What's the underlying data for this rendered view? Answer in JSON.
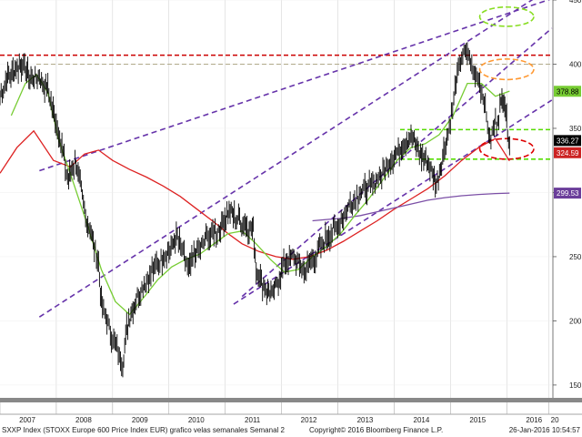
{
  "chart_data": {
    "type": "candlestick-line",
    "ylim": [
      140,
      450
    ],
    "xlim": [
      2007.0,
      2016.82
    ],
    "yticks": [
      150,
      200,
      250,
      300,
      350,
      400,
      450
    ],
    "year_labels": [
      "2007",
      "2008",
      "2009",
      "2010",
      "2011",
      "2012",
      "2013",
      "2014",
      "2015",
      "2016",
      "20"
    ],
    "year_label_positions": [
      2007.0,
      2008.0,
      2009.0,
      2010.0,
      2011.0,
      2012.0,
      2013.0,
      2014.0,
      2015.0,
      2016.0,
      2016.75
    ],
    "price_path": [
      [
        2007.0,
        375
      ],
      [
        2007.1,
        387
      ],
      [
        2007.25,
        395
      ],
      [
        2007.4,
        400
      ],
      [
        2007.55,
        388
      ],
      [
        2007.7,
        390
      ],
      [
        2007.85,
        380
      ],
      [
        2008.0,
        355
      ],
      [
        2008.1,
        335
      ],
      [
        2008.2,
        310
      ],
      [
        2008.35,
        325
      ],
      [
        2008.5,
        285
      ],
      [
        2008.6,
        270
      ],
      [
        2008.75,
        245
      ],
      [
        2008.8,
        215
      ],
      [
        2008.9,
        200
      ],
      [
        2009.0,
        185
      ],
      [
        2009.1,
        175
      ],
      [
        2009.18,
        165
      ],
      [
        2009.25,
        195
      ],
      [
        2009.4,
        215
      ],
      [
        2009.6,
        232
      ],
      [
        2009.8,
        245
      ],
      [
        2010.0,
        255
      ],
      [
        2010.15,
        265
      ],
      [
        2010.35,
        240
      ],
      [
        2010.5,
        255
      ],
      [
        2010.7,
        265
      ],
      [
        2010.9,
        272
      ],
      [
        2011.05,
        285
      ],
      [
        2011.2,
        280
      ],
      [
        2011.35,
        275
      ],
      [
        2011.5,
        270
      ],
      [
        2011.55,
        240
      ],
      [
        2011.7,
        225
      ],
      [
        2011.85,
        220
      ],
      [
        2012.0,
        240
      ],
      [
        2012.2,
        250
      ],
      [
        2012.4,
        238
      ],
      [
        2012.6,
        250
      ],
      [
        2012.8,
        265
      ],
      [
        2013.0,
        275
      ],
      [
        2013.2,
        290
      ],
      [
        2013.4,
        300
      ],
      [
        2013.6,
        305
      ],
      [
        2013.8,
        315
      ],
      [
        2014.0,
        330
      ],
      [
        2014.15,
        335
      ],
      [
        2014.3,
        345
      ],
      [
        2014.45,
        330
      ],
      [
        2014.6,
        325
      ],
      [
        2014.75,
        305
      ],
      [
        2014.9,
        335
      ],
      [
        2015.0,
        355
      ],
      [
        2015.1,
        385
      ],
      [
        2015.2,
        405
      ],
      [
        2015.3,
        410
      ],
      [
        2015.4,
        395
      ],
      [
        2015.5,
        390
      ],
      [
        2015.6,
        370
      ],
      [
        2015.7,
        340
      ],
      [
        2015.78,
        350
      ],
      [
        2015.88,
        365
      ],
      [
        2015.95,
        375
      ],
      [
        2016.0,
        355
      ],
      [
        2016.05,
        336
      ]
    ],
    "moving_average_fast": [
      [
        2007.2,
        360
      ],
      [
        2007.45,
        385
      ],
      [
        2007.65,
        392
      ],
      [
        2007.85,
        378
      ],
      [
        2008.05,
        340
      ],
      [
        2008.3,
        308
      ],
      [
        2008.55,
        275
      ],
      [
        2008.8,
        240
      ],
      [
        2009.05,
        215
      ],
      [
        2009.3,
        205
      ],
      [
        2009.55,
        218
      ],
      [
        2009.8,
        232
      ],
      [
        2010.05,
        242
      ],
      [
        2010.3,
        248
      ],
      [
        2010.55,
        252
      ],
      [
        2010.8,
        260
      ],
      [
        2011.05,
        268
      ],
      [
        2011.3,
        270
      ],
      [
        2011.55,
        260
      ],
      [
        2011.8,
        248
      ],
      [
        2012.05,
        238
      ],
      [
        2012.3,
        240
      ],
      [
        2012.55,
        250
      ],
      [
        2012.8,
        258
      ],
      [
        2013.05,
        268
      ],
      [
        2013.3,
        282
      ],
      [
        2013.55,
        295
      ],
      [
        2013.8,
        310
      ],
      [
        2014.05,
        325
      ],
      [
        2014.3,
        335
      ],
      [
        2014.55,
        338
      ],
      [
        2014.8,
        345
      ],
      [
        2015.05,
        360
      ],
      [
        2015.3,
        385
      ],
      [
        2015.55,
        385
      ],
      [
        2015.8,
        375
      ],
      [
        2016.05,
        379
      ]
    ],
    "moving_average_slow": [
      [
        2007.0,
        315
      ],
      [
        2007.3,
        335
      ],
      [
        2007.6,
        348
      ],
      [
        2007.95,
        325
      ],
      [
        2008.25,
        320
      ],
      [
        2008.5,
        330
      ],
      [
        2008.75,
        333
      ],
      [
        2009.0,
        325
      ],
      [
        2009.3,
        318
      ],
      [
        2009.6,
        312
      ],
      [
        2009.9,
        305
      ],
      [
        2010.2,
        297
      ],
      [
        2010.5,
        287
      ],
      [
        2010.8,
        277
      ],
      [
        2011.05,
        268
      ],
      [
        2011.3,
        260
      ],
      [
        2011.6,
        254
      ],
      [
        2011.9,
        250
      ],
      [
        2012.2,
        248
      ],
      [
        2012.5,
        250
      ],
      [
        2012.8,
        255
      ],
      [
        2013.1,
        262
      ],
      [
        2013.4,
        270
      ],
      [
        2013.7,
        278
      ],
      [
        2014.0,
        287
      ],
      [
        2014.3,
        295
      ],
      [
        2014.6,
        303
      ],
      [
        2014.9,
        313
      ],
      [
        2015.2,
        325
      ],
      [
        2015.5,
        335
      ],
      [
        2015.8,
        342
      ],
      [
        2016.05,
        324.59
      ]
    ],
    "moving_average_long": [
      [
        2012.55,
        278
      ],
      [
        2012.8,
        279
      ],
      [
        2013.1,
        280
      ],
      [
        2013.4,
        282
      ],
      [
        2013.7,
        285
      ],
      [
        2014.0,
        288
      ],
      [
        2014.3,
        291
      ],
      [
        2014.6,
        294
      ],
      [
        2014.9,
        296
      ],
      [
        2015.2,
        297.5
      ],
      [
        2015.5,
        298.5
      ],
      [
        2015.8,
        299.2
      ],
      [
        2016.05,
        299.53
      ]
    ],
    "channel_lines": [
      [
        [
          2007.7,
          203
        ],
        [
          2016.8,
          460
        ]
      ],
      [
        [
          2011.15,
          213
        ],
        [
          2016.8,
          372
        ]
      ],
      [
        [
          2007.7,
          317
        ],
        [
          2016.8,
          451
        ]
      ],
      [
        [
          2011.3,
          219
        ],
        [
          2016.8,
          428
        ]
      ]
    ],
    "horizontal_lines": [
      {
        "y": 407,
        "color": "#cc0000"
      },
      {
        "y": 400,
        "color": "#b0a98a"
      },
      {
        "y": 349,
        "color": "#55dd00"
      },
      {
        "y": 326,
        "color": "#55dd00"
      }
    ],
    "ellipses": [
      {
        "cx": 2016.0,
        "cy": 437,
        "rx": 0.48,
        "ry": 7.5,
        "color": "#88dd22"
      },
      {
        "cx": 2016.0,
        "cy": 396,
        "rx": 0.48,
        "ry": 8,
        "color": "#ff9933"
      },
      {
        "cx": 2016.0,
        "cy": 334,
        "rx": 0.48,
        "ry": 8,
        "color": "#dd0000"
      }
    ],
    "value_labels": [
      {
        "value": "378.88",
        "y": 378.88,
        "bg": "#77cc33",
        "fg": "#000000"
      },
      {
        "value": "336.27",
        "y": 340.5,
        "bg": "#000000",
        "fg": "#ffffff"
      },
      {
        "value": "324.59",
        "y": 331.0,
        "bg": "#cc2222",
        "fg": "#ffffff"
      },
      {
        "value": "299.53",
        "y": 299.53,
        "bg": "#6a3d9a",
        "fg": "#ffffff"
      }
    ],
    "colors": {
      "price": "#000000",
      "ma_fast": "#77cc33",
      "ma_slow": "#dd2222",
      "ma_long": "#7b4fa6",
      "channel": "#6633aa",
      "grid": "#cccccc"
    }
  },
  "footer": {
    "caption": "SXXP Index (STOXX Europe 600 Price Index EUR) grafico velas semanales  Semanal 2",
    "copyright": "Copyright© 2016 Bloomberg Finance L.P.",
    "timestamp": "26-Jan-2016 10:54:57"
  }
}
